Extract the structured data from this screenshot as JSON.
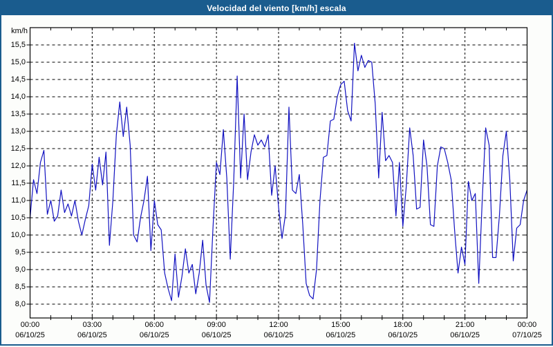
{
  "window": {
    "title": "Velocidad del viento [km/h] escala"
  },
  "colors": {
    "titlebar_and_border": "#1A5C8E",
    "title_text": "#FFFFFF",
    "line": "#1010C0",
    "grid": "#000000",
    "plot_background": "#FFFFFF",
    "page_background": "#FCFDFB",
    "axis_text": "#000000"
  },
  "chart_data": {
    "type": "line",
    "title": "Velocidad del viento [km/h] escala",
    "ylabel": "km/h",
    "xlabel": "",
    "legend": null,
    "grid": "dashed horizontal at every 0.5 km/h; dashed vertical at every 3 h; minor ticks every hour",
    "ylim": [
      7.6,
      16.0
    ],
    "yticks": [
      15.5,
      15.0,
      14.5,
      14.0,
      13.5,
      13.0,
      12.5,
      12.0,
      11.5,
      11.0,
      10.5,
      10.0,
      9.5,
      9.0,
      8.5,
      8.0
    ],
    "ytick_labels": [
      "15,5",
      "15,0",
      "14,5",
      "14,0",
      "13,5",
      "13,0",
      "12,5",
      "12,0",
      "11,5",
      "11,0",
      "10,5",
      "10,0",
      "9,5",
      "9,0",
      "8,5",
      "8,0"
    ],
    "xlim_hours": [
      0,
      24
    ],
    "xticks": [
      {
        "hour": 0,
        "time": "00:00",
        "date": "06/10/25"
      },
      {
        "hour": 3,
        "time": "03:00",
        "date": "06/10/25"
      },
      {
        "hour": 6,
        "time": "06:00",
        "date": "06/10/25"
      },
      {
        "hour": 9,
        "time": "09:00",
        "date": "06/10/25"
      },
      {
        "hour": 12,
        "time": "12:00",
        "date": "06/10/25"
      },
      {
        "hour": 15,
        "time": "15:00",
        "date": "06/10/25"
      },
      {
        "hour": 18,
        "time": "18:00",
        "date": "06/10/25"
      },
      {
        "hour": 21,
        "time": "21:00",
        "date": "06/10/25"
      },
      {
        "hour": 24,
        "time": "00:00",
        "date": "07/10/25"
      }
    ],
    "x_start_hour": 0,
    "x_step_minutes": 10,
    "series": [
      {
        "name": "Velocidad del viento",
        "unit": "km/h",
        "values": [
          10.5,
          11.6,
          11.2,
          12.1,
          12.45,
          10.6,
          11.0,
          10.4,
          10.55,
          11.3,
          10.65,
          10.9,
          10.55,
          11.0,
          10.4,
          10.0,
          10.45,
          10.85,
          12.05,
          11.3,
          12.25,
          11.45,
          12.4,
          9.7,
          11.0,
          12.9,
          13.85,
          12.85,
          13.7,
          12.6,
          10.0,
          9.8,
          10.5,
          11.0,
          11.7,
          9.55,
          11.0,
          10.3,
          10.15,
          8.9,
          8.45,
          8.1,
          9.45,
          8.2,
          8.8,
          9.6,
          8.9,
          9.15,
          8.3,
          8.9,
          9.85,
          8.55,
          8.05,
          10.2,
          12.1,
          11.75,
          13.05,
          11.65,
          9.3,
          11.55,
          14.6,
          11.65,
          13.5,
          11.6,
          12.4,
          12.9,
          12.6,
          12.75,
          12.55,
          12.9,
          11.15,
          12.0,
          10.8,
          9.9,
          10.6,
          13.7,
          11.3,
          11.2,
          11.75,
          10.3,
          8.6,
          8.25,
          8.15,
          9.0,
          11.0,
          12.25,
          12.3,
          13.3,
          13.35,
          14.0,
          14.35,
          14.45,
          13.6,
          13.3,
          15.55,
          14.75,
          15.2,
          14.85,
          15.05,
          15.0,
          13.8,
          11.65,
          13.55,
          12.15,
          12.3,
          12.1,
          10.55,
          12.1,
          10.25,
          11.4,
          13.1,
          12.3,
          10.75,
          10.8,
          12.75,
          12.0,
          10.3,
          10.25,
          12.0,
          12.55,
          12.5,
          12.1,
          11.6,
          10.15,
          8.9,
          9.65,
          9.15,
          11.55,
          11.0,
          11.2,
          8.6,
          11.0,
          13.1,
          12.6,
          9.35,
          9.35,
          10.6,
          12.3,
          13.0,
          11.6,
          9.25,
          10.2,
          10.3,
          11.0,
          11.3
        ]
      }
    ]
  }
}
